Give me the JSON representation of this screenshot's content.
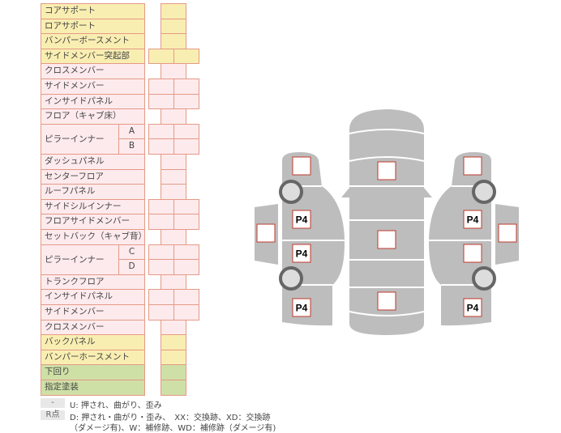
{
  "rows": [
    {
      "label": "コアサポート",
      "color": "y",
      "cols": 1
    },
    {
      "label": "ロアサポート",
      "color": "y",
      "cols": 1
    },
    {
      "label": "バンパーボースメント",
      "color": "y",
      "cols": 1
    },
    {
      "label": "サイドメンバー突起部",
      "color": "y",
      "cols": 2
    },
    {
      "label": "クロスメンバー",
      "color": "p",
      "cols": 1
    },
    {
      "label": "サイドメンバー",
      "color": "p",
      "cols": 2
    },
    {
      "label": "インサイドパネル",
      "color": "p",
      "cols": 2
    },
    {
      "label": "フロア（キャブ床）",
      "color": "p",
      "cols": 1
    },
    {
      "label": "ピラーインナー",
      "sub": "A",
      "color": "p",
      "cols": 2,
      "span": 2
    },
    {
      "sub": "B",
      "color": "p",
      "cols": 2
    },
    {
      "label": "ダッシュパネル",
      "color": "p",
      "cols": 1
    },
    {
      "label": "センターフロア",
      "color": "p",
      "cols": 1
    },
    {
      "label": "ルーフパネル",
      "color": "p",
      "cols": 1
    },
    {
      "label": "サイドシルインナー",
      "color": "p",
      "cols": 2
    },
    {
      "label": "フロアサイドメンバー",
      "color": "p",
      "cols": 2
    },
    {
      "label": "セットバック（キャブ背）",
      "color": "p",
      "cols": 1
    },
    {
      "label": "ピラーインナー",
      "sub": "C",
      "color": "p",
      "cols": 2,
      "span": 2
    },
    {
      "sub": "D",
      "color": "p",
      "cols": 2
    },
    {
      "label": "トランクフロア",
      "color": "p",
      "cols": 1
    },
    {
      "label": "インサイドパネル",
      "color": "p",
      "cols": 2
    },
    {
      "label": "サイドメンバー",
      "color": "p",
      "cols": 2
    },
    {
      "label": "クロスメンバー",
      "color": "p",
      "cols": 1
    },
    {
      "label": "バックパネル",
      "color": "y",
      "cols": 1
    },
    {
      "label": "バンパーホースメント",
      "color": "y",
      "cols": 1
    },
    {
      "label": "下回り",
      "color": "g",
      "cols": 1
    },
    {
      "label": "指定塗装",
      "color": "g",
      "cols": 1
    }
  ],
  "legend": {
    "key1": "-",
    "text1": "U: 押され、曲がり、歪み",
    "key2": "R点",
    "text2": "D: 押され・曲がり・歪み、　XX：交換跡、XD：交換跡",
    "text3": "（ダメージ有)、W：補修跡、WD：補修跡（ダメージ有)"
  },
  "diagram": {
    "marks": [
      {
        "id": "left-front",
        "text": ""
      },
      {
        "id": "left-p4-1",
        "text": "P4"
      },
      {
        "id": "left-p4-2",
        "text": "P4"
      },
      {
        "id": "left-p4-3",
        "text": "P4"
      },
      {
        "id": "left-door",
        "text": ""
      },
      {
        "id": "center-front",
        "text": ""
      },
      {
        "id": "center-mid",
        "text": ""
      },
      {
        "id": "center-rear",
        "text": ""
      },
      {
        "id": "right-front",
        "text": ""
      },
      {
        "id": "right-p4-1",
        "text": "P4"
      },
      {
        "id": "right-mid",
        "text": ""
      },
      {
        "id": "right-p4-2",
        "text": "P4"
      },
      {
        "id": "right-door",
        "text": ""
      }
    ]
  },
  "colors": {
    "yellow": "#f9eeb1",
    "pink": "#fdeaed",
    "green": "#cfe0a6",
    "border": "#e49a86",
    "body": "#bdbdbd",
    "mark_border": "#c0392b"
  }
}
